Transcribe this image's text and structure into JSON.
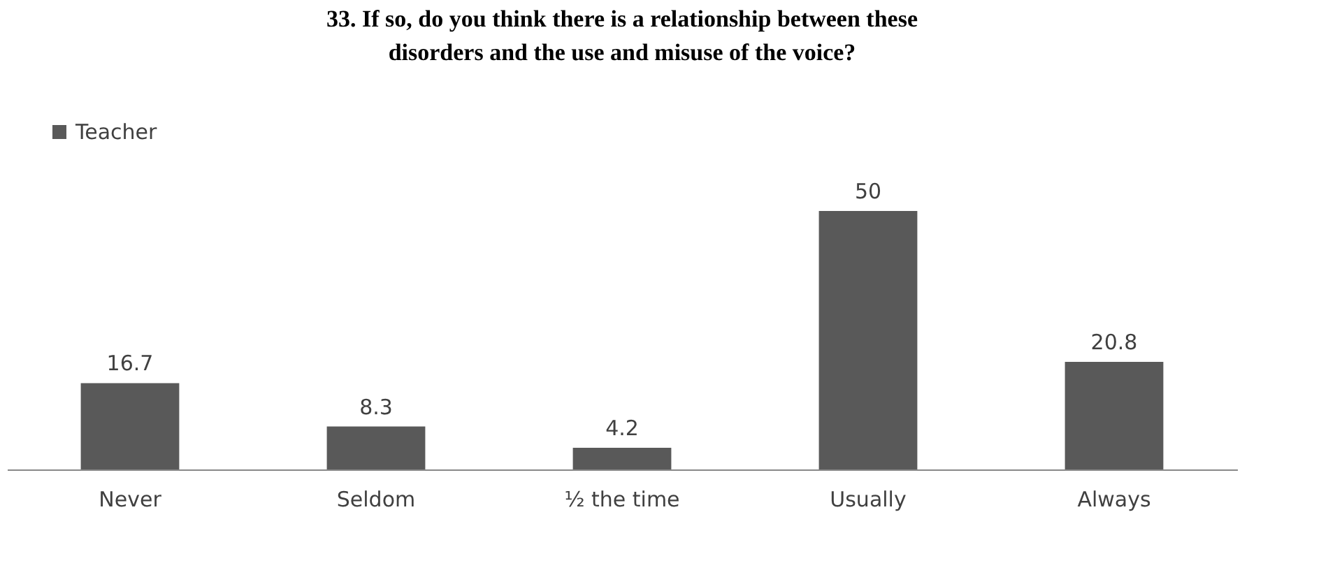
{
  "chart_data": {
    "type": "bar",
    "title": "33. If so, do you think there is a relationship between these disorders and the use and misuse of the voice?",
    "categories": [
      "Never",
      "Seldom",
      "½ the time",
      "Usually",
      "Always"
    ],
    "series": [
      {
        "name": "Teacher",
        "color": "#595959",
        "values": [
          16.7,
          8.3,
          4.2,
          50,
          20.8
        ]
      }
    ],
    "data_labels": true,
    "grid": false,
    "legend": "top"
  }
}
